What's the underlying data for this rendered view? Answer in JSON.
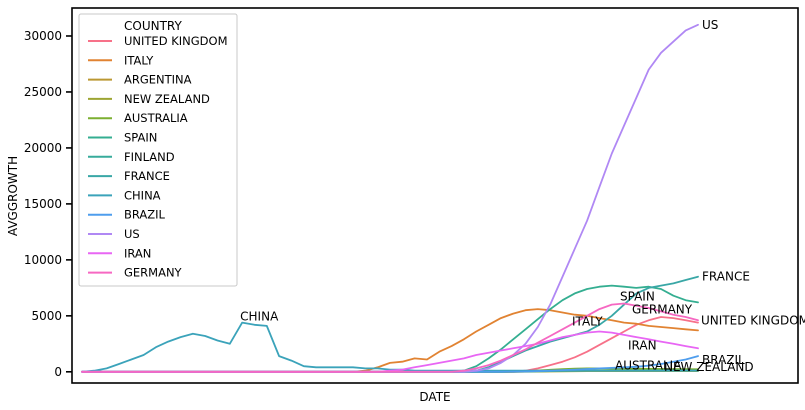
{
  "chart_data": {
    "type": "line",
    "title": "",
    "xlabel": "DATE",
    "ylabel": "AVGGROWTH",
    "ylim": [
      -1000,
      32500
    ],
    "y_ticks": [
      0,
      5000,
      10000,
      15000,
      20000,
      25000,
      30000
    ],
    "y_tick_labels": [
      "0",
      "5000",
      "10000",
      "15000",
      "20000",
      "25000",
      "30000"
    ],
    "grid": false,
    "legend": {
      "title": "COUNTRY",
      "placement": "top-left",
      "labels": [
        "UNITED KINGDOM",
        "ITALY",
        "ARGENTINA",
        "NEW ZEALAND",
        "AUSTRALIA",
        "SPAIN",
        "FINLAND",
        "FRANCE",
        "CHINA",
        "BRAZIL",
        "US",
        "IRAN",
        "GERMANY"
      ]
    },
    "end_labels": [
      "US",
      "FRANCE",
      "SPAIN",
      "GERMANY",
      "ITALY",
      "UNITED KINGDOM",
      "IRAN",
      "BRAZIL",
      "AUSTRALIA",
      "NEW ZEALAND"
    ],
    "peak_labels": [
      "CHINA"
    ],
    "x": [
      0,
      2,
      4,
      6,
      8,
      10,
      12,
      14,
      16,
      18,
      20,
      22,
      24,
      26,
      28,
      30,
      32,
      34,
      36,
      38,
      40,
      42,
      44,
      46,
      48,
      50,
      52,
      54,
      56,
      58,
      60,
      62,
      64,
      66,
      68,
      70,
      72,
      74,
      76,
      78,
      80,
      82,
      84,
      86,
      88,
      90,
      92,
      94,
      96,
      98,
      100
    ],
    "series": [
      {
        "name": "UNITED KINGDOM",
        "color": "#f77189",
        "values": [
          0,
          0,
          0,
          0,
          0,
          0,
          0,
          0,
          0,
          0,
          0,
          0,
          0,
          0,
          0,
          0,
          0,
          0,
          0,
          0,
          0,
          0,
          0,
          0,
          0,
          0,
          0,
          0,
          0,
          0,
          0,
          0,
          0,
          0,
          0,
          0,
          100,
          300,
          600,
          900,
          1300,
          1800,
          2400,
          3000,
          3600,
          4200,
          4600,
          4900,
          4800,
          4600,
          4400
        ]
      },
      {
        "name": "ITALY",
        "color": "#e18332",
        "values": [
          0,
          0,
          0,
          0,
          0,
          0,
          0,
          0,
          0,
          0,
          0,
          0,
          0,
          0,
          0,
          0,
          0,
          0,
          0,
          0,
          0,
          0,
          0,
          100,
          400,
          800,
          900,
          1200,
          1100,
          1800,
          2300,
          2900,
          3600,
          4200,
          4800,
          5200,
          5500,
          5600,
          5500,
          5300,
          5100,
          5000,
          4800,
          4600,
          4400,
          4300,
          4100,
          4000,
          3900,
          3800,
          3700
        ]
      },
      {
        "name": "ARGENTINA",
        "color": "#bb9832",
        "values": [
          0,
          0,
          0,
          0,
          0,
          0,
          0,
          0,
          0,
          0,
          0,
          0,
          0,
          0,
          0,
          0,
          0,
          0,
          0,
          0,
          0,
          0,
          0,
          0,
          0,
          0,
          0,
          0,
          0,
          0,
          0,
          0,
          0,
          0,
          0,
          10,
          20,
          40,
          60,
          80,
          90,
          100,
          110,
          110,
          110,
          110,
          110,
          110,
          110,
          110,
          110
        ]
      },
      {
        "name": "NEW ZEALAND",
        "color": "#9da532",
        "values": [
          0,
          0,
          0,
          0,
          0,
          0,
          0,
          0,
          0,
          0,
          0,
          0,
          0,
          0,
          0,
          0,
          0,
          0,
          0,
          0,
          0,
          0,
          0,
          0,
          0,
          0,
          0,
          0,
          0,
          0,
          0,
          0,
          0,
          0,
          0,
          0,
          10,
          20,
          30,
          40,
          50,
          60,
          60,
          60,
          60,
          60,
          60,
          60,
          60,
          60,
          60
        ]
      },
      {
        "name": "AUSTRALIA",
        "color": "#7caf31",
        "values": [
          0,
          0,
          0,
          0,
          0,
          0,
          0,
          0,
          0,
          0,
          0,
          0,
          0,
          0,
          0,
          0,
          0,
          0,
          0,
          0,
          0,
          0,
          0,
          0,
          0,
          0,
          0,
          0,
          0,
          0,
          0,
          0,
          0,
          0,
          0,
          20,
          60,
          120,
          180,
          240,
          280,
          300,
          300,
          290,
          280,
          270,
          260,
          250,
          240,
          230,
          220
        ]
      },
      {
        "name": "SPAIN",
        "color": "#34ae91",
        "values": [
          0,
          0,
          0,
          0,
          0,
          0,
          0,
          0,
          0,
          0,
          0,
          0,
          0,
          0,
          0,
          0,
          0,
          0,
          0,
          0,
          0,
          0,
          0,
          0,
          0,
          0,
          0,
          0,
          0,
          0,
          0,
          100,
          500,
          1200,
          2000,
          2900,
          3800,
          4700,
          5600,
          6400,
          7000,
          7400,
          7600,
          7700,
          7600,
          7500,
          7600,
          7400,
          6800,
          6400,
          6200
        ]
      },
      {
        "name": "FINLAND",
        "color": "#37ab9b",
        "values": [
          0,
          0,
          0,
          0,
          0,
          0,
          0,
          0,
          0,
          0,
          0,
          0,
          0,
          0,
          0,
          0,
          0,
          0,
          0,
          0,
          0,
          0,
          0,
          0,
          0,
          0,
          0,
          0,
          0,
          0,
          0,
          0,
          0,
          0,
          0,
          10,
          20,
          40,
          60,
          80,
          100,
          110,
          120,
          120,
          120,
          120,
          120,
          120,
          120,
          120,
          120
        ]
      },
      {
        "name": "FRANCE",
        "color": "#39a7a6",
        "values": [
          0,
          0,
          0,
          0,
          0,
          0,
          0,
          0,
          0,
          0,
          0,
          0,
          0,
          0,
          0,
          0,
          0,
          0,
          0,
          0,
          0,
          0,
          0,
          0,
          0,
          0,
          0,
          0,
          0,
          0,
          0,
          0,
          100,
          400,
          900,
          1400,
          1900,
          2300,
          2700,
          3000,
          3300,
          3600,
          4200,
          5000,
          6000,
          7000,
          7500,
          7700,
          7900,
          8200,
          8500
        ]
      },
      {
        "name": "CHINA",
        "color": "#3ba3ba",
        "values": [
          0,
          100,
          300,
          700,
          1100,
          1500,
          2200,
          2700,
          3100,
          3400,
          3200,
          2800,
          2500,
          4400,
          4200,
          4100,
          1400,
          1000,
          500,
          400,
          400,
          400,
          400,
          300,
          300,
          200,
          200,
          100,
          100,
          100,
          100,
          100,
          100,
          100,
          100,
          100,
          100,
          100,
          100,
          100,
          100,
          100,
          100,
          100,
          100,
          100,
          100,
          100,
          100,
          100,
          100
        ]
      },
      {
        "name": "BRAZIL",
        "color": "#4e9ded",
        "values": [
          0,
          0,
          0,
          0,
          0,
          0,
          0,
          0,
          0,
          0,
          0,
          0,
          0,
          0,
          0,
          0,
          0,
          0,
          0,
          0,
          0,
          0,
          0,
          0,
          0,
          0,
          0,
          0,
          0,
          0,
          0,
          0,
          0,
          0,
          0,
          10,
          30,
          60,
          100,
          150,
          200,
          250,
          300,
          350,
          400,
          450,
          550,
          700,
          900,
          1100,
          1400
        ]
      },
      {
        "name": "US",
        "color": "#b088f4",
        "values": [
          0,
          0,
          0,
          0,
          0,
          0,
          0,
          0,
          0,
          0,
          0,
          0,
          0,
          0,
          0,
          0,
          0,
          0,
          0,
          0,
          0,
          0,
          0,
          0,
          0,
          0,
          0,
          0,
          0,
          0,
          0,
          0,
          100,
          300,
          800,
          1500,
          2500,
          4000,
          6000,
          8500,
          11000,
          13500,
          16500,
          19500,
          22000,
          24500,
          27000,
          28500,
          29500,
          30500,
          31000
        ]
      },
      {
        "name": "IRAN",
        "color": "#e866f4",
        "values": [
          0,
          0,
          0,
          0,
          0,
          0,
          0,
          0,
          0,
          0,
          0,
          0,
          0,
          0,
          0,
          0,
          0,
          0,
          0,
          0,
          0,
          0,
          0,
          0,
          0,
          100,
          200,
          400,
          600,
          800,
          1000,
          1200,
          1500,
          1700,
          1900,
          2100,
          2300,
          2500,
          2800,
          3100,
          3300,
          3500,
          3600,
          3500,
          3300,
          3100,
          2900,
          2700,
          2500,
          2300,
          2100
        ]
      },
      {
        "name": "GERMANY",
        "color": "#f668c2",
        "values": [
          0,
          0,
          0,
          0,
          0,
          0,
          0,
          0,
          0,
          0,
          0,
          0,
          0,
          0,
          0,
          0,
          0,
          0,
          0,
          0,
          0,
          0,
          0,
          0,
          0,
          0,
          0,
          0,
          0,
          0,
          0,
          100,
          300,
          600,
          1000,
          1500,
          2000,
          2600,
          3200,
          3800,
          4400,
          5000,
          5600,
          6000,
          6100,
          5900,
          5700,
          5400,
          5100,
          4900,
          4600
        ]
      }
    ]
  }
}
